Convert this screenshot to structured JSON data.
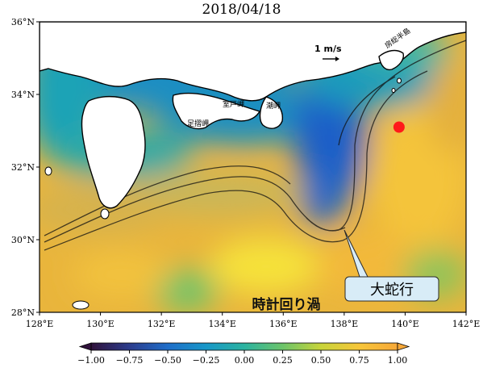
{
  "title": "2018/04/18",
  "map": {
    "lon_range": [
      128,
      142
    ],
    "lat_range": [
      28,
      36
    ],
    "x_ticks": [
      {
        "value": 128,
        "label": "128°E"
      },
      {
        "value": 130,
        "label": "130°E"
      },
      {
        "value": 132,
        "label": "132°E"
      },
      {
        "value": 134,
        "label": "134°E"
      },
      {
        "value": 136,
        "label": "136°E"
      },
      {
        "value": 138,
        "label": "138°E"
      },
      {
        "value": 140,
        "label": "140°E"
      },
      {
        "value": 142,
        "label": "142°E"
      }
    ],
    "y_ticks": [
      {
        "value": 36,
        "label": "36°N"
      },
      {
        "value": 34,
        "label": "34°N"
      },
      {
        "value": 32,
        "label": "32°N"
      },
      {
        "value": 30,
        "label": "30°N"
      },
      {
        "value": 28,
        "label": "28°N"
      }
    ],
    "scale_label": "1 m/s",
    "marker": {
      "lon": 139.8,
      "lat": 33.1,
      "color": "#ff1a1a"
    },
    "place_labels": {
      "boso": "房総半島",
      "muroto": "室戸岬",
      "ashizuri": "足摺岬",
      "shionomisaki": "潮岬"
    },
    "meander_callout": {
      "text": "大蛇行",
      "anchor": {
        "lon": 138.0,
        "lat": 30.2
      }
    },
    "eddy_label": "時計回り渦"
  },
  "colorbar": {
    "min": -1.0,
    "max": 1.0,
    "ticks": [
      "−1.00",
      "−0.75",
      "−0.50",
      "−0.25",
      "0.00",
      "0.25",
      "0.50",
      "0.75",
      "1.00"
    ],
    "colors": [
      "#30123b",
      "#2c3c8c",
      "#1f6ec9",
      "#1797c8",
      "#2bb3a0",
      "#6cc46a",
      "#c8d43a",
      "#f7c63a",
      "#f7a838"
    ]
  }
}
